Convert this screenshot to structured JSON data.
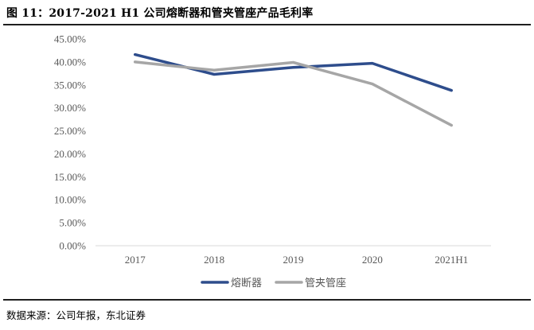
{
  "figure": {
    "title": "图  11：2017-2021 H1 公司熔断器和管夹管座产品毛利率",
    "source": "数据来源：公司年报，东北证券"
  },
  "chart_data": {
    "type": "line",
    "title": "",
    "xlabel": "",
    "ylabel": "",
    "categories": [
      "2017",
      "2018",
      "2019",
      "2020",
      "2021H1"
    ],
    "y_ticks": [
      "0.00%",
      "5.00%",
      "10.00%",
      "15.00%",
      "20.00%",
      "25.00%",
      "30.00%",
      "35.00%",
      "40.00%",
      "45.00%"
    ],
    "ylim": [
      0,
      45
    ],
    "grid": false,
    "legend_position": "bottom",
    "series": [
      {
        "name": "熔断器",
        "color": "#2e4d8c",
        "values": [
          41.6,
          37.3,
          38.8,
          39.7,
          33.8
        ]
      },
      {
        "name": "管夹管座",
        "color": "#a6a6a6",
        "values": [
          40.0,
          38.2,
          39.9,
          35.2,
          26.2
        ]
      }
    ]
  }
}
